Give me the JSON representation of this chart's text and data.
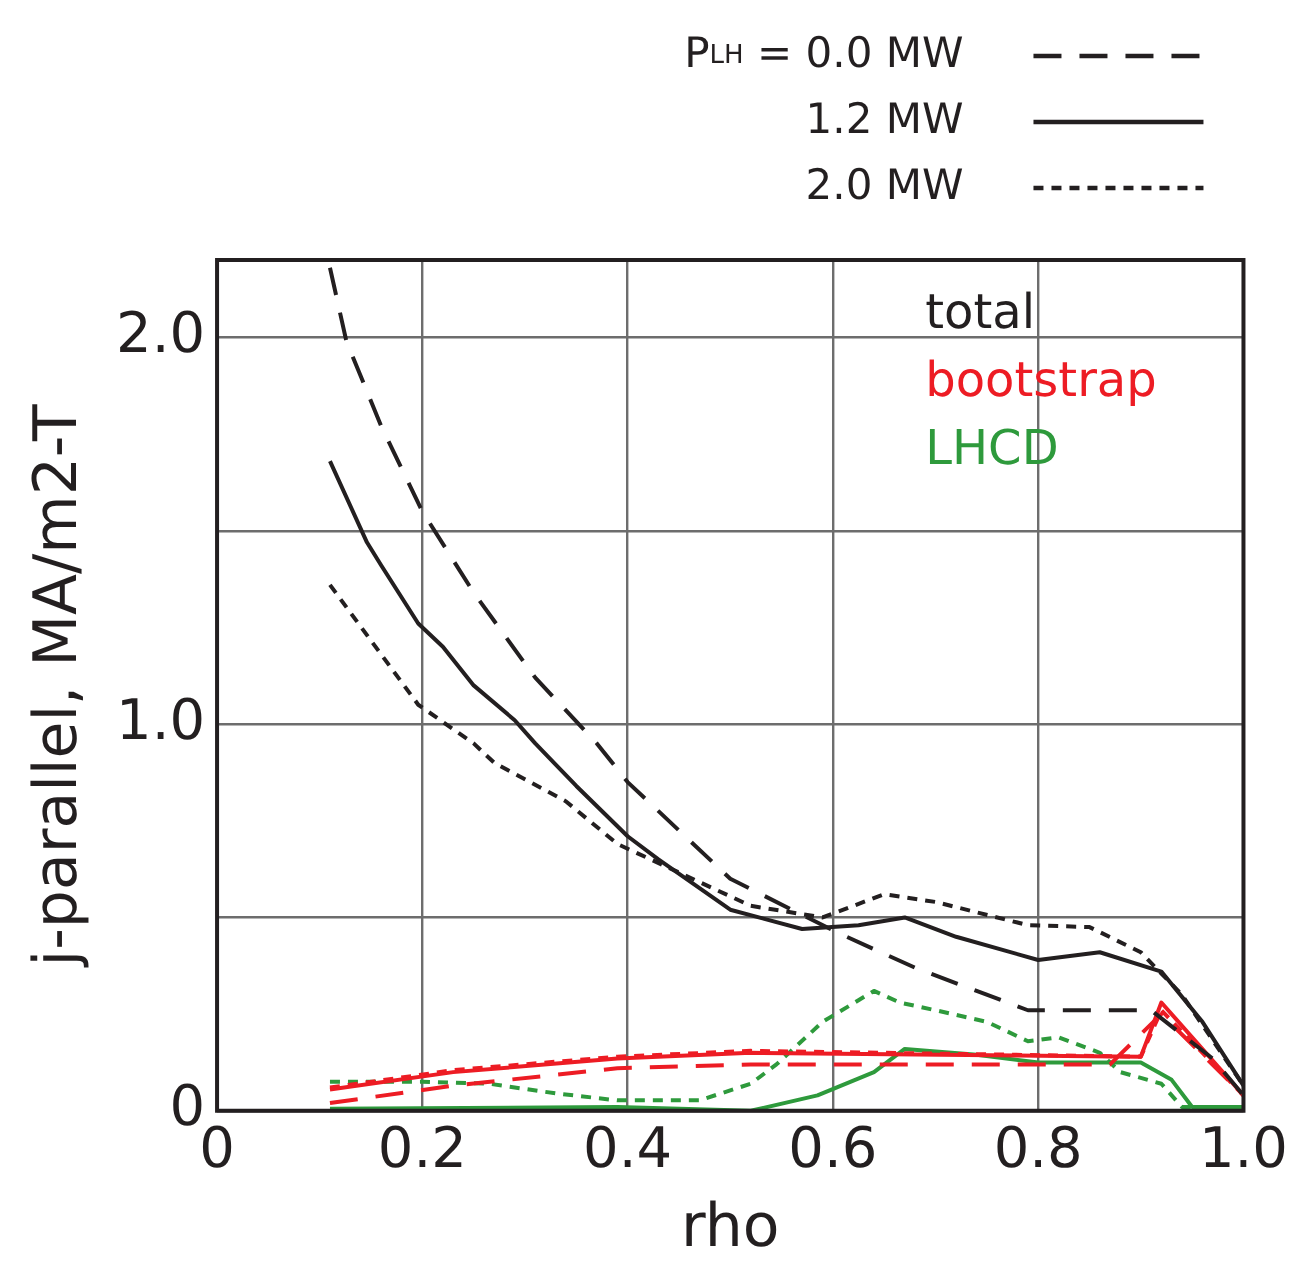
{
  "chart_data": {
    "type": "line",
    "xlabel": "rho",
    "ylabel": "j-parallel, MA/m2-T",
    "xlim": [
      0,
      1
    ],
    "ylim": [
      0,
      2.2
    ],
    "xticks": [
      0,
      {
        "value": 0.2,
        "label": "0.2"
      },
      {
        "value": 0.4,
        "label": "0.4"
      },
      {
        "value": 0.6,
        "label": "0.6"
      },
      {
        "value": 0.8,
        "label": "0.8"
      },
      {
        "value": 1,
        "label": "1.0"
      }
    ],
    "yticks": [
      0,
      {
        "value": 0.5,
        "label": null
      },
      {
        "value": 1,
        "label": "1.0"
      },
      {
        "value": 1.5,
        "label": null
      },
      {
        "value": 2,
        "label": "2.0"
      }
    ],
    "grid": true,
    "legend": "top right",
    "marker": "none",
    "annotations": [
      "total",
      "bootstrap",
      "LHCD"
    ],
    "series": [
      {
        "name": "P$_{LH}$ = 0.0 MW",
        "color": "#231f20",
        "line_style": "dashed",
        "x": [
          0.11,
          0.126,
          0.16,
          0.2,
          0.25,
          0.31,
          0.37,
          0.4,
          0.5,
          0.605,
          0.68,
          0.74,
          0.79,
          0.88,
          0.91,
          0.97,
          1.0
        ],
        "values": [
          2.18,
          1.99,
          1.77,
          1.55,
          1.34,
          1.12,
          0.95,
          0.85,
          0.6,
          0.46,
          0.37,
          0.31,
          0.26,
          0.26,
          0.26,
          0.135,
          0.04
        ]
      },
      {
        "name": "1.2 MW",
        "color": "#231f20",
        "line_style": "solid",
        "x": [
          0.11,
          0.146,
          0.16,
          0.196,
          0.22,
          0.25,
          0.29,
          0.31,
          0.35,
          0.4,
          0.43,
          0.5,
          0.57,
          0.625,
          0.67,
          0.72,
          0.8,
          0.86,
          0.92,
          0.96,
          1.0
        ],
        "values": [
          1.68,
          1.47,
          1.41,
          1.26,
          1.2,
          1.1,
          1.01,
          0.95,
          0.84,
          0.71,
          0.65,
          0.52,
          0.47,
          0.48,
          0.5,
          0.45,
          0.39,
          0.41,
          0.36,
          0.23,
          0.065
        ]
      },
      {
        "name": "2.0 MW",
        "color": "#231f20",
        "line_style": "dotted",
        "x": [
          0.11,
          0.196,
          0.25,
          0.27,
          0.34,
          0.39,
          0.52,
          0.59,
          0.65,
          0.7,
          0.79,
          0.85,
          0.9,
          0.94,
          1.0
        ],
        "values": [
          1.36,
          1.05,
          0.95,
          0.9,
          0.8,
          0.69,
          0.53,
          0.5,
          0.56,
          0.54,
          0.48,
          0.475,
          0.41,
          0.3,
          0.065
        ]
      },
      {
        "color": "#ed1c24",
        "line_style": "dashed",
        "x": [
          0.11,
          0.23,
          0.39,
          0.52,
          0.87,
          0.92,
          1.0
        ],
        "values": [
          0.02,
          0.065,
          0.11,
          0.12,
          0.12,
          0.25,
          0.04
        ]
      },
      {
        "color": "#ed1c24",
        "line_style": "solid",
        "x": [
          0.11,
          0.23,
          0.39,
          0.52,
          0.9,
          0.92,
          1.0
        ],
        "values": [
          0.055,
          0.1,
          0.135,
          0.15,
          0.14,
          0.28,
          0.04
        ]
      },
      {
        "color": "#ed1c24",
        "line_style": "dotted",
        "x": [
          0.11,
          0.23,
          0.39,
          0.52,
          0.9,
          0.92,
          1.0
        ],
        "values": [
          0.06,
          0.105,
          0.14,
          0.155,
          0.14,
          0.26,
          0.04
        ]
      },
      {
        "color": "#2e9a3c",
        "line_style": "solid",
        "x": [
          0.11,
          0.39,
          0.52,
          0.585,
          0.64,
          0.67,
          0.74,
          0.8,
          0.9,
          0.93,
          0.95,
          1.0
        ],
        "values": [
          0.005,
          0.01,
          0,
          0.04,
          0.1,
          0.16,
          0.145,
          0.125,
          0.125,
          0.08,
          0.01,
          0.01
        ]
      },
      {
        "color": "#2e9a3c",
        "line_style": "dotted",
        "x": [
          0.11,
          0.2,
          0.265,
          0.33,
          0.39,
          0.47,
          0.52,
          0.545,
          0.59,
          0.64,
          0.665,
          0.7,
          0.75,
          0.79,
          0.82,
          0.86,
          0.88,
          0.92,
          0.94,
          1.0
        ],
        "values": [
          0.075,
          0.075,
          0.07,
          0.045,
          0.027,
          0.027,
          0.07,
          0.12,
          0.23,
          0.31,
          0.28,
          0.26,
          0.23,
          0.18,
          0.19,
          0.15,
          0.1,
          0.07,
          0.01,
          0.01
        ]
      }
    ]
  }
}
